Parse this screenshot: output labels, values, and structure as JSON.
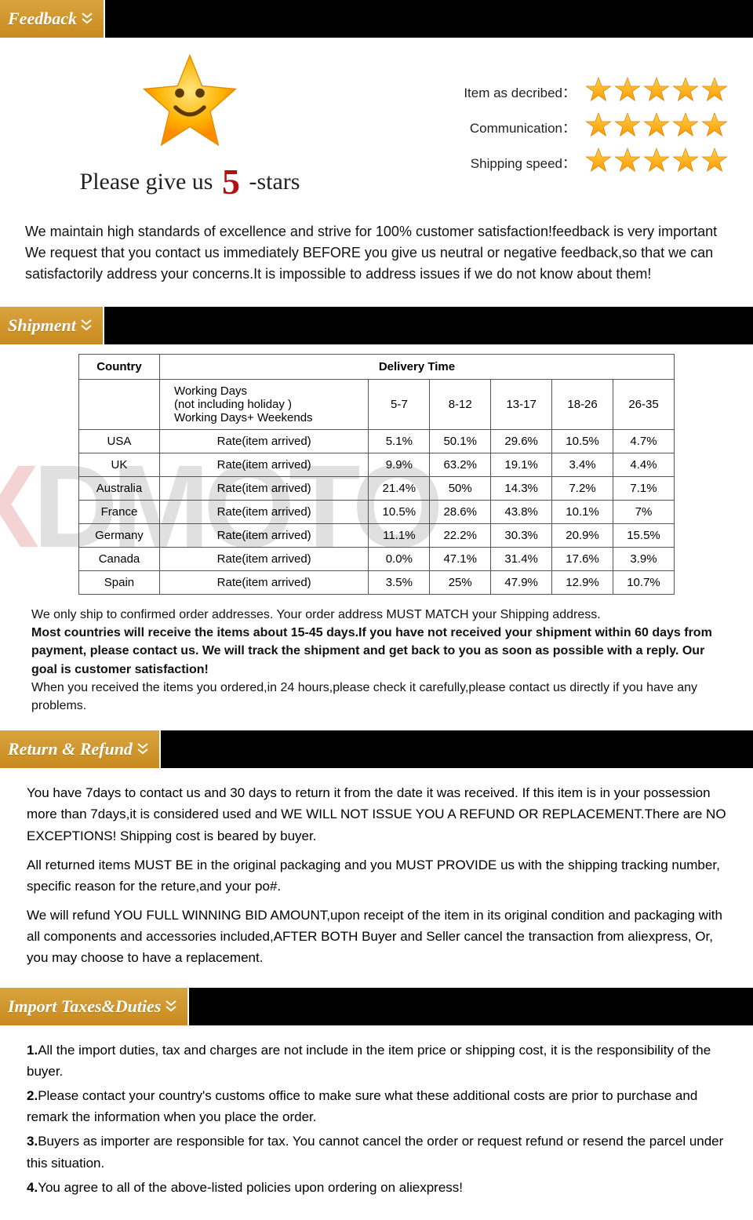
{
  "sections": {
    "feedback": {
      "title": "Feedback",
      "tagline_prefix": "Please give us ",
      "tagline_num": "5",
      "tagline_suffix": " -stars",
      "ratings": [
        {
          "label": "Item as decribed：",
          "stars": 5
        },
        {
          "label": "Communication：",
          "stars": 5
        },
        {
          "label": "Shipping speed：",
          "stars": 5
        }
      ],
      "text": "We maintain high standards of excellence and strive for 100% customer satisfaction!feedback is very important We request that you contact us immediately BEFORE you give us neutral or negative feedback,so that we can satisfactorily address your concerns.It is impossible to address issues if we do not know about them!"
    },
    "shipment": {
      "title": "Shipment",
      "table": {
        "col_country": "Country",
        "col_delivery": "Delivery Time",
        "working_days_line1": "Working Days",
        "working_days_line2": "(not including holiday )",
        "working_days_line3": "Working Days+ Weekends",
        "day_ranges": [
          "5-7",
          "8-12",
          "13-17",
          "18-26",
          "26-35"
        ],
        "rate_label": "Rate(item arrived)",
        "rows": [
          {
            "country": "USA",
            "vals": [
              "5.1%",
              "50.1%",
              "29.6%",
              "10.5%",
              "4.7%"
            ]
          },
          {
            "country": "UK",
            "vals": [
              "9.9%",
              "63.2%",
              "19.1%",
              "3.4%",
              "4.4%"
            ]
          },
          {
            "country": "Australia",
            "vals": [
              "21.4%",
              "50%",
              "14.3%",
              "7.2%",
              "7.1%"
            ]
          },
          {
            "country": "France",
            "vals": [
              "10.5%",
              "28.6%",
              "43.8%",
              "10.1%",
              "7%"
            ]
          },
          {
            "country": "Germany",
            "vals": [
              "11.1%",
              "22.2%",
              "30.3%",
              "20.9%",
              "15.5%"
            ]
          },
          {
            "country": "Canada",
            "vals": [
              "0.0%",
              "47.1%",
              "31.4%",
              "17.6%",
              "3.9%"
            ]
          },
          {
            "country": "Spain",
            "vals": [
              "3.5%",
              "25%",
              "47.9%",
              "12.9%",
              "10.7%"
            ]
          }
        ]
      },
      "text1": "We only ship to confirmed order addresses. Your order address MUST MATCH your Shipping address.",
      "text2": "Most countries will receive the items about 15-45 days.If you have not received your shipment within 60 days from payment, please contact us. We will track the shipment and get back to you as soon as possible with a reply. Our goal is customer satisfaction!",
      "text3": "When you received the items you ordered,in 24 hours,please check it carefully,please contact us directly if you have any problems."
    },
    "refund": {
      "title": "Return & Refund",
      "p1": "You have 7days to contact us and 30 days to return it from the date it was received. If this item is in your possession more than 7days,it is considered used and WE WILL NOT ISSUE YOU A REFUND OR REPLACEMENT.There are  NO EXCEPTIONS! Shipping cost is beared by buyer.",
      "p2": "All returned items MUST BE in the original packaging and you MUST PROVIDE us with the shipping tracking number, specific reason for the reture,and your po#.",
      "p3": "We will refund YOU FULL WINNING BID AMOUNT,upon receipt of the item in its original condition and packaging with all components and accessories included,AFTER BOTH Buyer and Seller cancel the transaction from aliexpress, Or, you may choose to have a replacement."
    },
    "taxes": {
      "title": "Import Taxes&Duties",
      "items": [
        "All the import duties, tax and charges are not include in the item price or shipping cost, it is the responsibility of the buyer.",
        "Please contact your country's customs office to make sure what these additional costs are prior to purchase and remark the information when you place the order.",
        "Buyers as importer are responsible for tax. You cannot cancel the order or request refund or resend the parcel under this situation.",
        "You agree to all of the above-listed policies upon ordering on aliexpress!"
      ]
    }
  },
  "colors": {
    "tab_bg_top": "#d9a43f",
    "tab_bg_bottom": "#c88a1e",
    "star_fill_top": "#ffd24a",
    "star_fill_bottom": "#ff9a00",
    "red": "#b21111"
  },
  "watermark": {
    "prefix": "X",
    "mid": "D",
    "suffix": "MOTO"
  }
}
